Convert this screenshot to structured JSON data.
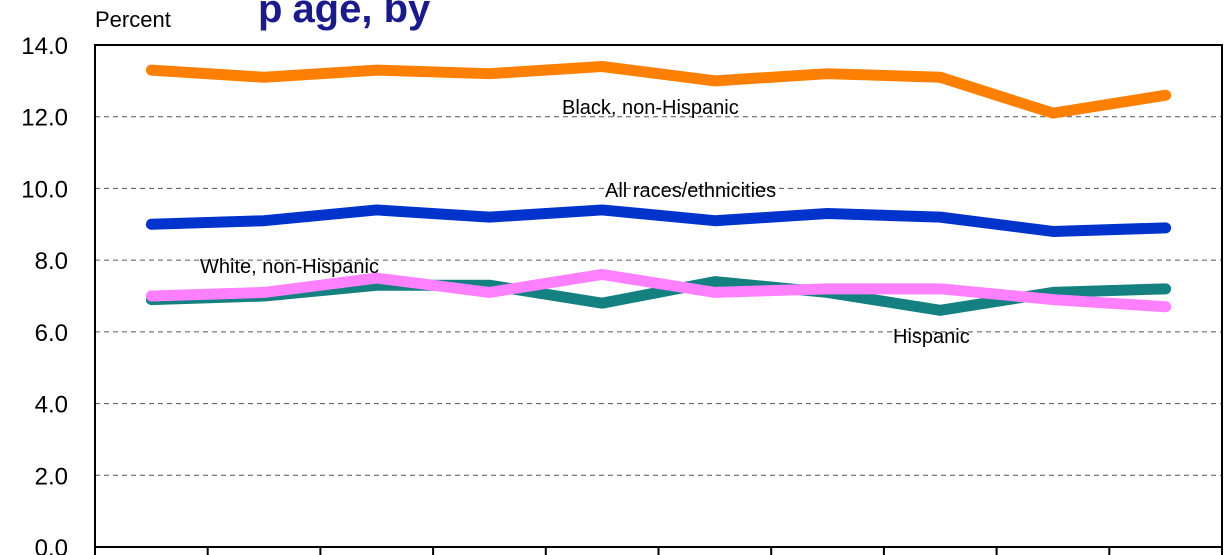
{
  "chart_data": {
    "type": "line",
    "title_fragment": "p",
    "title_fragment_rest": "age, by",
    "title_fragment_end": ",",
    "ylabel": "Percent",
    "ylim": [
      0,
      14
    ],
    "yticks": [
      "0.0",
      "2.0",
      "4.0",
      "6.0",
      "8.0",
      "10.0",
      "12.0",
      "14.0"
    ],
    "grid": true,
    "x": [
      1,
      2,
      3,
      4,
      5,
      6,
      7,
      8,
      9,
      10
    ],
    "series": [
      {
        "key": "black",
        "name": "Black, non-Hispanic",
        "color": "#ff8000",
        "values": [
          13.3,
          13.1,
          13.3,
          13.2,
          13.4,
          13.0,
          13.2,
          13.1,
          12.1,
          12.6
        ]
      },
      {
        "key": "all",
        "name": "All races/ethnicities",
        "color": "#0033cc",
        "values": [
          9.0,
          9.1,
          9.4,
          9.2,
          9.4,
          9.1,
          9.3,
          9.2,
          8.8,
          8.9
        ]
      },
      {
        "key": "hispanic",
        "name": "Hispanic",
        "color": "#148080",
        "values": [
          6.9,
          7.0,
          7.3,
          7.3,
          6.8,
          7.4,
          7.1,
          6.6,
          7.1,
          7.2
        ]
      },
      {
        "key": "white",
        "name": "White, non-Hispanic",
        "color": "#ff80ff",
        "values": [
          7.0,
          7.1,
          7.5,
          7.1,
          7.6,
          7.1,
          7.2,
          7.2,
          6.9,
          6.7
        ]
      }
    ]
  }
}
